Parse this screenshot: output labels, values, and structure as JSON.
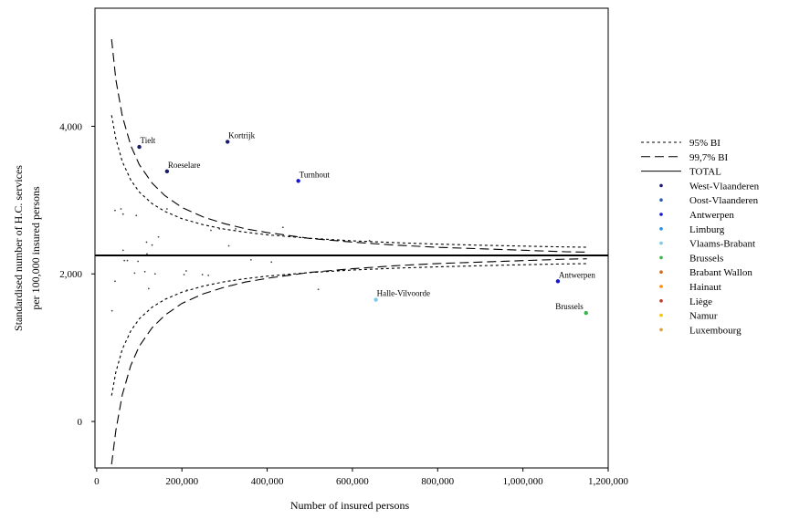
{
  "chart_data": {
    "type": "scatter",
    "xlabel": "Number of insured persons",
    "ylabel_lines": [
      "Standardised number of H.C. services",
      "per 100,000 insured persons"
    ],
    "xlim": [
      -4000,
      1200000
    ],
    "ylim": [
      -630,
      5600
    ],
    "x_ticks": [
      0,
      200000,
      400000,
      600000,
      800000,
      1000000,
      1200000
    ],
    "x_tick_labels": [
      "0",
      "200,000",
      "400,000",
      "600,000",
      "800,000",
      "1,000,000",
      "1,200,000"
    ],
    "y_ticks": [
      0,
      2000,
      4000
    ],
    "y_tick_labels": [
      "0",
      "2,000",
      "4,000"
    ],
    "total_line": 2250,
    "band_x": [
      35000,
      45000,
      60000,
      80000,
      100000,
      130000,
      160000,
      200000,
      250000,
      300000,
      350000,
      400000,
      500000,
      600000,
      700000,
      800000,
      900000,
      1000000,
      1100000,
      1150000
    ],
    "band_95_upper": [
      4150,
      3829,
      3522,
      3273,
      3109,
      2952,
      2846,
      2748,
      2665,
      2606,
      2564,
      2530,
      2482,
      2448,
      2423,
      2404,
      2389,
      2376,
      2365,
      2361
    ],
    "band_95_lower": [
      350,
      671,
      978,
      1227,
      1391,
      1548,
      1654,
      1752,
      1835,
      1894,
      1936,
      1970,
      2018,
      2052,
      2077,
      2096,
      2111,
      2124,
      2135,
      2139
    ],
    "band_997_upper": [
      5180,
      4630,
      4140,
      3740,
      3480,
      3230,
      3060,
      2900,
      2770,
      2680,
      2610,
      2560,
      2480,
      2430,
      2390,
      2360,
      2340,
      2320,
      2300,
      2295
    ],
    "band_997_lower": [
      -580,
      -120,
      360,
      760,
      1020,
      1270,
      1440,
      1600,
      1730,
      1820,
      1890,
      1940,
      2020,
      2070,
      2110,
      2140,
      2160,
      2180,
      2200,
      2205
    ],
    "labeled_points": [
      {
        "name": "Tielt",
        "province": "West-Vlaanderen",
        "x": 100000,
        "y": 3720
      },
      {
        "name": "Kortrijk",
        "province": "West-Vlaanderen",
        "x": 307000,
        "y": 3790
      },
      {
        "name": "Roeselare",
        "province": "West-Vlaanderen",
        "x": 165000,
        "y": 3390
      },
      {
        "name": "Turnhout",
        "province": "Antwerpen",
        "x": 473000,
        "y": 3260
      },
      {
        "name": "Antwerpen",
        "province": "Antwerpen",
        "x": 1082000,
        "y": 1900
      },
      {
        "name": "Halle-Vilvoorde",
        "province": "Vlaams-Brabant",
        "x": 655000,
        "y": 1650
      },
      {
        "name": "Brussels",
        "province": "Brussels",
        "x": 1148000,
        "y": 1470
      }
    ],
    "other_points": [
      {
        "x": 43000,
        "y": 2860
      },
      {
        "x": 57000,
        "y": 2880
      },
      {
        "x": 62000,
        "y": 2810
      },
      {
        "x": 93000,
        "y": 2790
      },
      {
        "x": 165000,
        "y": 2880
      },
      {
        "x": 117000,
        "y": 2430
      },
      {
        "x": 145000,
        "y": 2500
      },
      {
        "x": 130000,
        "y": 2390
      },
      {
        "x": 62000,
        "y": 2320
      },
      {
        "x": 118000,
        "y": 2270
      },
      {
        "x": 268000,
        "y": 2590
      },
      {
        "x": 288000,
        "y": 2610
      },
      {
        "x": 326000,
        "y": 2610
      },
      {
        "x": 437000,
        "y": 2630
      },
      {
        "x": 310000,
        "y": 2380
      },
      {
        "x": 640000,
        "y": 2450
      },
      {
        "x": 65000,
        "y": 2180
      },
      {
        "x": 72000,
        "y": 2180
      },
      {
        "x": 97000,
        "y": 2170
      },
      {
        "x": 362000,
        "y": 2190
      },
      {
        "x": 410000,
        "y": 2160
      },
      {
        "x": 113000,
        "y": 2030
      },
      {
        "x": 137000,
        "y": 2000
      },
      {
        "x": 89000,
        "y": 2010
      },
      {
        "x": 210000,
        "y": 2040
      },
      {
        "x": 205000,
        "y": 1990
      },
      {
        "x": 248000,
        "y": 1990
      },
      {
        "x": 262000,
        "y": 1980
      },
      {
        "x": 43000,
        "y": 1900
      },
      {
        "x": 122000,
        "y": 1800
      },
      {
        "x": 212000,
        "y": 1780
      },
      {
        "x": 520000,
        "y": 1790
      },
      {
        "x": 36000,
        "y": 1500
      }
    ],
    "legend": [
      {
        "label": "95% BI",
        "kind": "line",
        "dash": "3,3"
      },
      {
        "label": "99,7% BI",
        "kind": "line",
        "dash": "10,5"
      },
      {
        "label": "TOTAL",
        "kind": "line",
        "dash": ""
      },
      {
        "label": "West-Vlaanderen",
        "kind": "dot",
        "color": "#1a1a6e"
      },
      {
        "label": "Oost-Vlaanderen",
        "kind": "dot",
        "color": "#2a5db0"
      },
      {
        "label": "Antwerpen",
        "kind": "dot",
        "color": "#1515d8"
      },
      {
        "label": "Limburg",
        "kind": "dot",
        "color": "#2a8fe0"
      },
      {
        "label": "Vlaams-Brabant",
        "kind": "dot",
        "color": "#7ec8e8"
      },
      {
        "label": "Brussels",
        "kind": "dot",
        "color": "#3cb44b"
      },
      {
        "label": "Brabant Wallon",
        "kind": "dot",
        "color": "#d2691e"
      },
      {
        "label": "Hainaut",
        "kind": "dot",
        "color": "#ff8c00"
      },
      {
        "label": "Liège",
        "kind": "dot",
        "color": "#c0392b"
      },
      {
        "label": "Namur",
        "kind": "dot",
        "color": "#f1c40f"
      },
      {
        "label": "Luxembourg",
        "kind": "dot",
        "color": "#e0a030"
      }
    ],
    "grid": false,
    "legend_placement": "right"
  }
}
